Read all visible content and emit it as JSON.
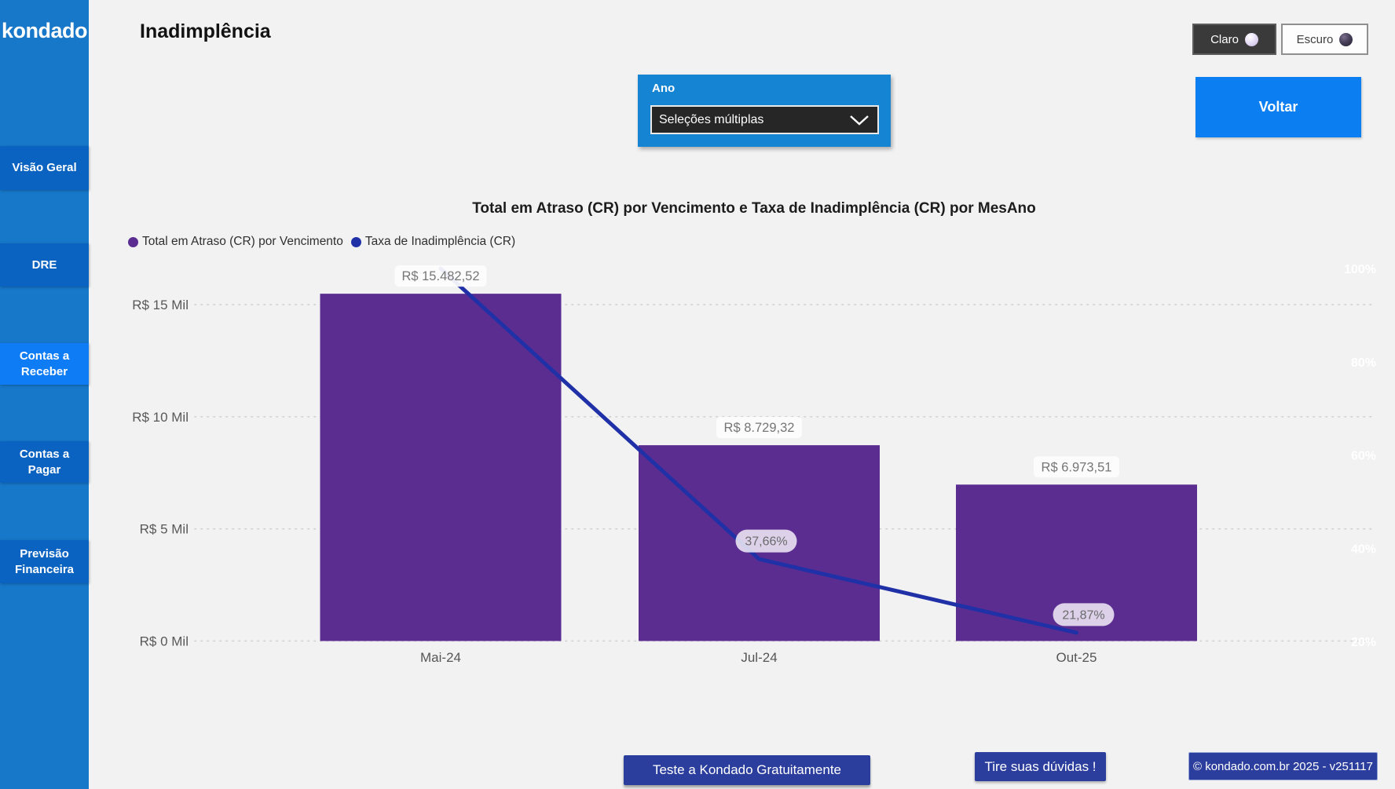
{
  "app": {
    "logo": "kondado",
    "page_title": "Inadimplência"
  },
  "sidebar": {
    "items": [
      {
        "label": "Visão Geral",
        "active": false
      },
      {
        "label": "DRE",
        "active": false
      },
      {
        "label": "Contas a Receber",
        "active": true
      },
      {
        "label": "Contas a Pagar",
        "active": false
      },
      {
        "label": "Previsão Financeira",
        "active": false
      }
    ]
  },
  "theme_toggle": {
    "light_label": "Claro",
    "dark_label": "Escuro"
  },
  "filter": {
    "label": "Ano",
    "value": "Seleções múltiplas"
  },
  "voltar_label": "Voltar",
  "chart_data": {
    "type": "bar",
    "subtype": "combo-bar-line-dual-axis",
    "title": "Total em Atraso (CR) por Vencimento e Taxa de Inadimplência (CR) por MesAno",
    "categories": [
      "Mai-24",
      "Jul-24",
      "Out-25"
    ],
    "series": [
      {
        "name": "Total em Atraso (CR) por Vencimento",
        "type": "bar",
        "axis": "left",
        "values": [
          15482.52,
          8729.32,
          6973.51
        ],
        "labels": [
          "R$ 15.482,52",
          "R$ 8.729,32",
          "R$ 6.973,51"
        ],
        "color": "#5b2d90"
      },
      {
        "name": "Taxa de Inadimplência (CR)",
        "type": "line",
        "axis": "right",
        "values": [
          100.0,
          37.66,
          21.87
        ],
        "labels": [
          "",
          "37,66%",
          "21,87%"
        ],
        "color": "#2031a8"
      }
    ],
    "left_axis": {
      "ticks": [
        {
          "label": "R$ 0 Mil",
          "value": 0
        },
        {
          "label": "R$ 5 Mil",
          "value": 5000
        },
        {
          "label": "R$ 10 Mil",
          "value": 10000
        },
        {
          "label": "R$ 15 Mil",
          "value": 15000
        }
      ]
    },
    "right_axis": {
      "min": 20,
      "max": 100,
      "ticks": [
        {
          "label": "20%",
          "value": 20
        },
        {
          "label": "40%",
          "value": 40
        },
        {
          "label": "60%",
          "value": 60
        },
        {
          "label": "80%",
          "value": 80
        },
        {
          "label": "100%",
          "value": 100
        }
      ]
    },
    "grid": "dotted-horizontal",
    "legend_position": "top-left"
  },
  "footer": {
    "cta_primary": "Teste a Kondado Gratuitamente",
    "cta_secondary": "Tire suas dúvidas !",
    "copyright": "© kondado.com.br 2025 - v251117"
  },
  "colors": {
    "sidebar_bg": "#1777c9",
    "sidebar_item_bg": "#0a63c0",
    "sidebar_item_active_bg": "#0e7cf4",
    "filter_panel_bg": "#1584d2",
    "voltar_bg": "#0b7ff2",
    "bar": "#5b2d90",
    "line": "#2031a8",
    "footer_btn_bg": "#2c3e9d",
    "gridline": "#cfcfcf",
    "axis_text": "#585858",
    "right_axis_text": "#ffffff",
    "data_label_text": "#767676"
  }
}
